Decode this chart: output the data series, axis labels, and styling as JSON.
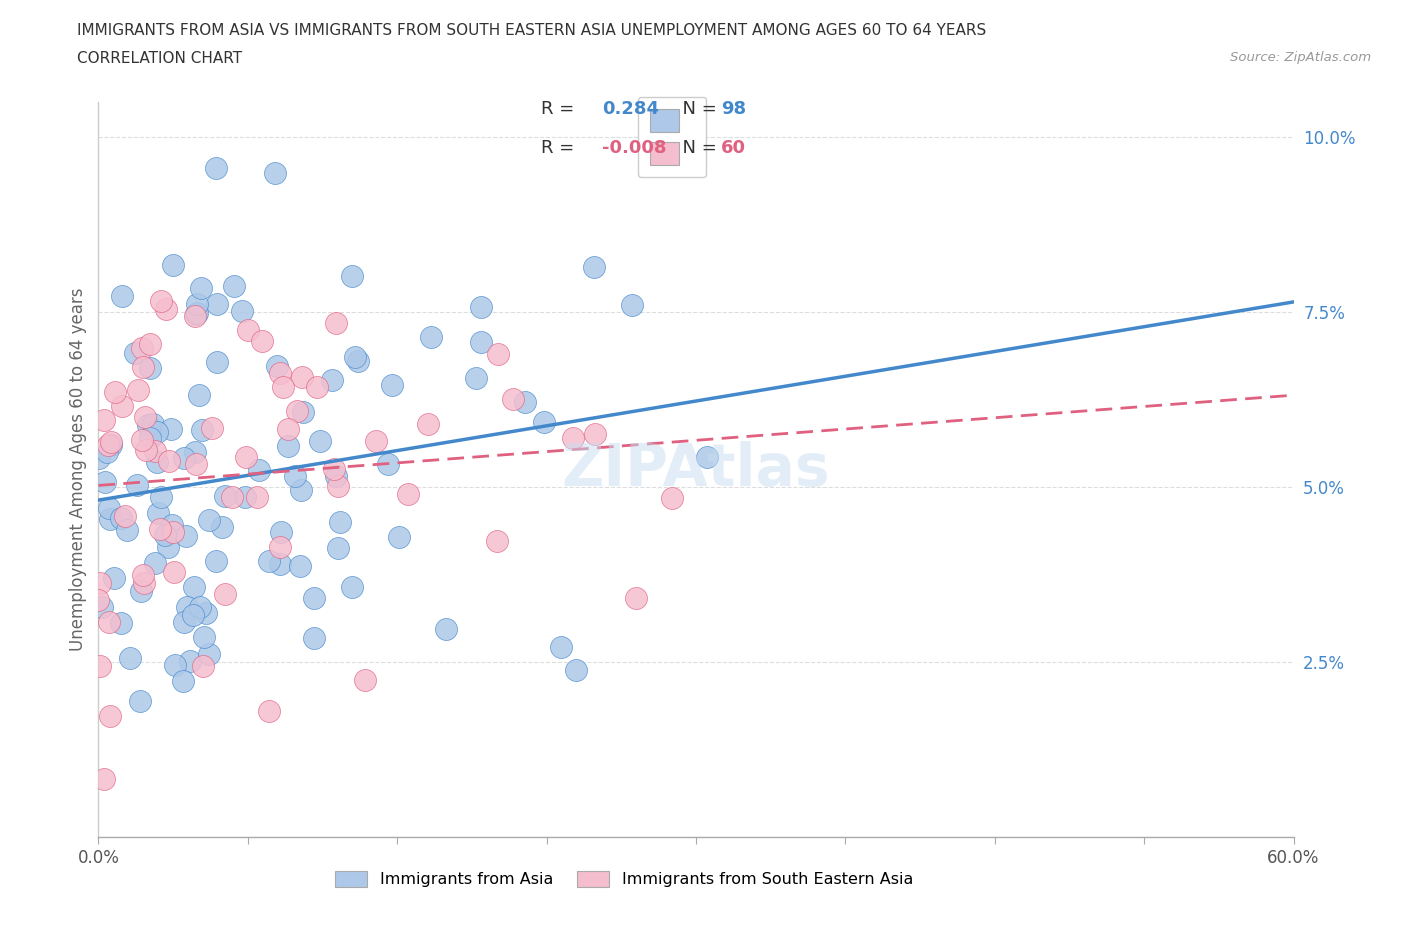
{
  "title_line1": "IMMIGRANTS FROM ASIA VS IMMIGRANTS FROM SOUTH EASTERN ASIA UNEMPLOYMENT AMONG AGES 60 TO 64 YEARS",
  "title_line2": "CORRELATION CHART",
  "source": "Source: ZipAtlas.com",
  "ylabel": "Unemployment Among Ages 60 to 64 years",
  "legend_labels": [
    "Immigrants from Asia",
    "Immigrants from South Eastern Asia"
  ],
  "R_asia": 0.284,
  "N_asia": 98,
  "R_sea": -0.008,
  "N_sea": 60,
  "xlim": [
    0.0,
    0.6
  ],
  "ylim": [
    0.0,
    0.105
  ],
  "xticks": [
    0.0,
    0.075,
    0.15,
    0.225,
    0.3,
    0.375,
    0.45,
    0.525,
    0.6
  ],
  "yticks": [
    0.0,
    0.025,
    0.05,
    0.075,
    0.1
  ],
  "ytick_labels": [
    "",
    "2.5%",
    "5.0%",
    "7.5%",
    "10.0%"
  ],
  "color_asia": "#adc8e8",
  "color_sea": "#f5bece",
  "line_color_asia": "#4488cc",
  "line_color_sea": "#e06080",
  "ytick_color": "#4488cc",
  "background": "#ffffff",
  "grid_color": "#dddddd"
}
